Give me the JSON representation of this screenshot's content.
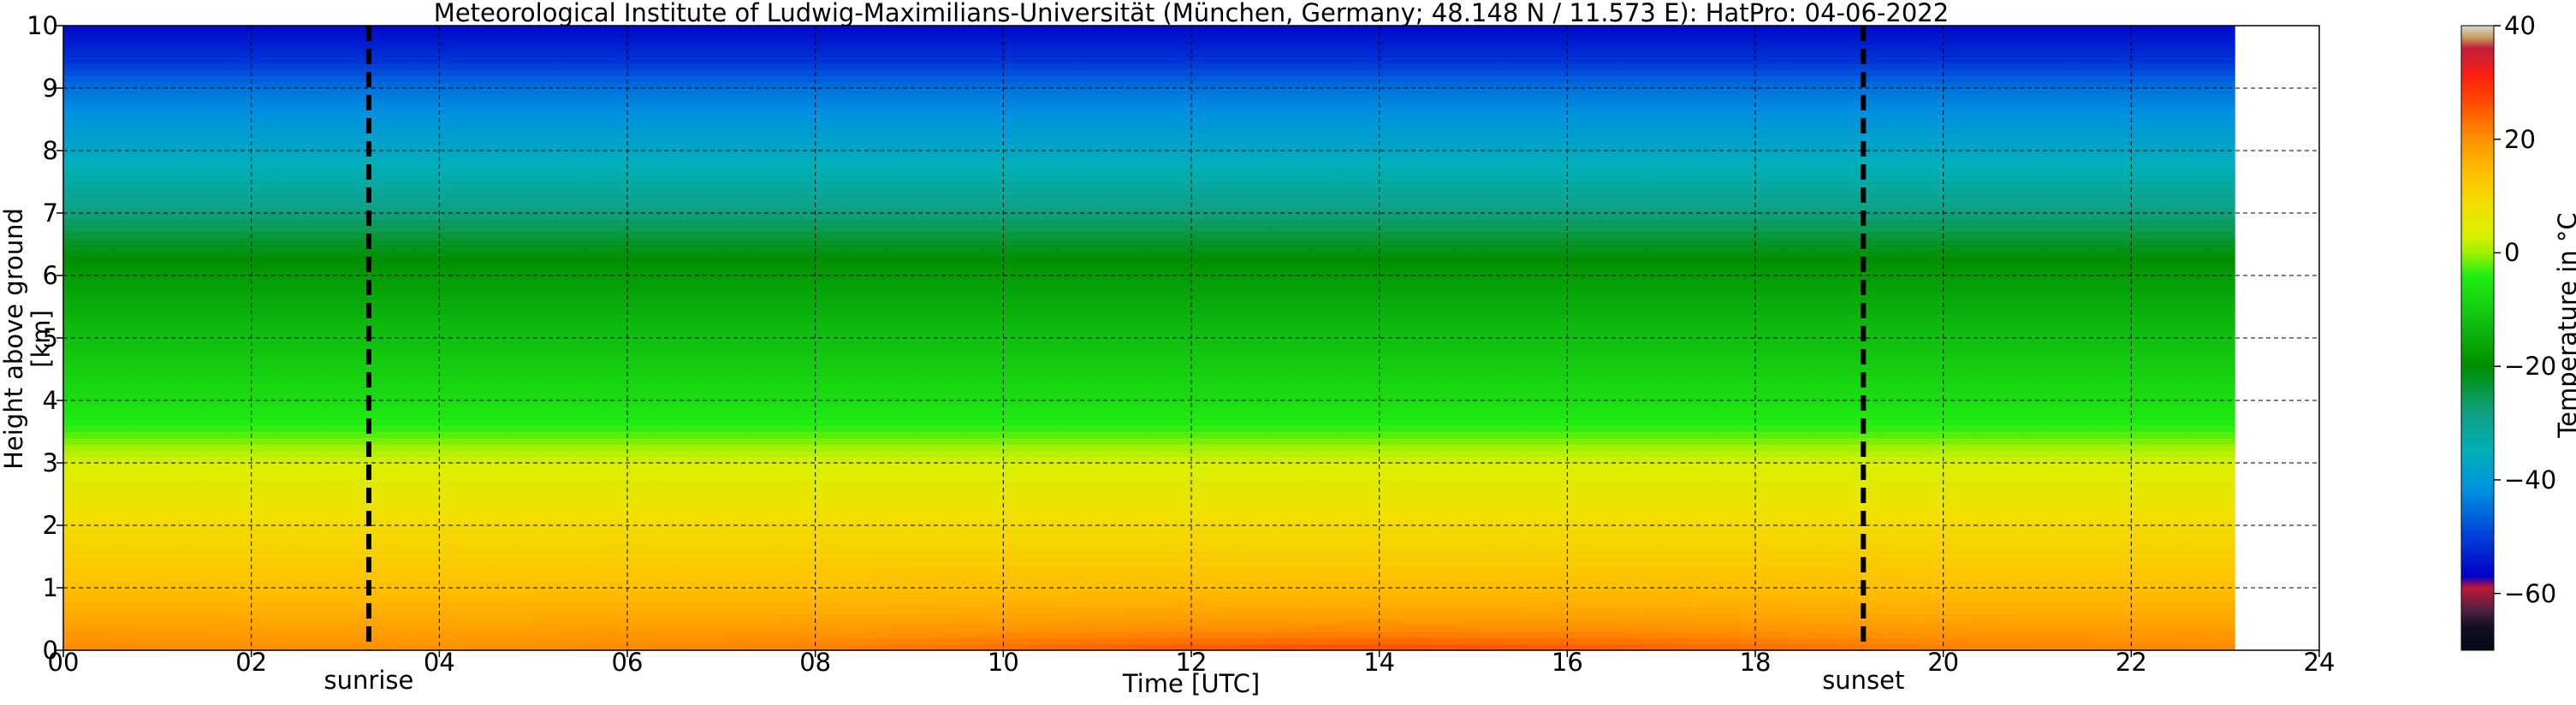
{
  "chart_data": {
    "type": "heatmap",
    "title": "Meteorological Institute of Ludwig-Maximilians-Universität (München, Germany; 48.148 N / 11.573 E):    HatPro: 04-06-2022",
    "xlabel": "Time [UTC]",
    "ylabel": "Height above ground [km]",
    "xlim": [
      0,
      24
    ],
    "ylim": [
      0,
      10
    ],
    "data_time_range": [
      0,
      23.1
    ],
    "x_ticks": [
      "00",
      "02",
      "04",
      "06",
      "08",
      "10",
      "12",
      "14",
      "16",
      "18",
      "20",
      "22",
      "24"
    ],
    "y_ticks": [
      "0",
      "1",
      "2",
      "3",
      "4",
      "5",
      "6",
      "7",
      "8",
      "9",
      "10"
    ],
    "grid": true,
    "colorbar": {
      "label": "Temperature in $^\\circ$C",
      "range": [
        -70,
        40
      ],
      "ticks": [
        "40",
        "20",
        "0",
        "−20",
        "−40",
        "−60"
      ],
      "colors": [
        {
          "value": 40,
          "color": "#d8d8d8"
        },
        {
          "value": 38,
          "color": "#c8a060"
        },
        {
          "value": 36,
          "color": "#c0203c"
        },
        {
          "value": 31,
          "color": "#ff2010"
        },
        {
          "value": 26,
          "color": "#ff5000"
        },
        {
          "value": 20,
          "color": "#ff9000"
        },
        {
          "value": 14,
          "color": "#ffc000"
        },
        {
          "value": 8,
          "color": "#f0e000"
        },
        {
          "value": 3,
          "color": "#d8f000"
        },
        {
          "value": 0,
          "color": "#a0f000"
        },
        {
          "value": -4,
          "color": "#20ee10"
        },
        {
          "value": -12,
          "color": "#10c010"
        },
        {
          "value": -20,
          "color": "#008f00"
        },
        {
          "value": -28,
          "color": "#10a080"
        },
        {
          "value": -35,
          "color": "#00b0b8"
        },
        {
          "value": -42,
          "color": "#0090e0"
        },
        {
          "value": -50,
          "color": "#0040d8"
        },
        {
          "value": -57,
          "color": "#0000c8"
        },
        {
          "value": -59,
          "color": "#c01838"
        },
        {
          "value": -63,
          "color": "#502040"
        },
        {
          "value": -66,
          "color": "#101020"
        },
        {
          "value": -70,
          "color": "#060818"
        }
      ]
    },
    "temperature_profile": [
      {
        "height_km": 0,
        "temp_c": 20
      },
      {
        "height_km": 1,
        "temp_c": 14
      },
      {
        "height_km": 2,
        "temp_c": 9
      },
      {
        "height_km": 3,
        "temp_c": 3
      },
      {
        "height_km": 3.5,
        "temp_c": -3
      },
      {
        "height_km": 4,
        "temp_c": -7
      },
      {
        "height_km": 5,
        "temp_c": -12
      },
      {
        "height_km": 6,
        "temp_c": -18
      },
      {
        "height_km": 6.5,
        "temp_c": -22
      },
      {
        "height_km": 7,
        "temp_c": -28
      },
      {
        "height_km": 8,
        "temp_c": -37
      },
      {
        "height_km": 9,
        "temp_c": -45
      },
      {
        "height_km": 9.5,
        "temp_c": -52
      },
      {
        "height_km": 10,
        "temp_c": -56
      }
    ],
    "surface_warming": [
      {
        "time_h": 0,
        "delta_c": 1
      },
      {
        "time_h": 4,
        "delta_c": 0
      },
      {
        "time_h": 8,
        "delta_c": 2
      },
      {
        "time_h": 10,
        "delta_c": 4
      },
      {
        "time_h": 12,
        "delta_c": 6
      },
      {
        "time_h": 14,
        "delta_c": 7
      },
      {
        "time_h": 16,
        "delta_c": 6
      },
      {
        "time_h": 18,
        "delta_c": 4
      },
      {
        "time_h": 20,
        "delta_c": 2
      },
      {
        "time_h": 23.1,
        "delta_c": 1
      }
    ],
    "markers": [
      {
        "label": "sunrise",
        "time_h": 3.25
      },
      {
        "label": "sunset",
        "time_h": 19.15
      }
    ]
  }
}
